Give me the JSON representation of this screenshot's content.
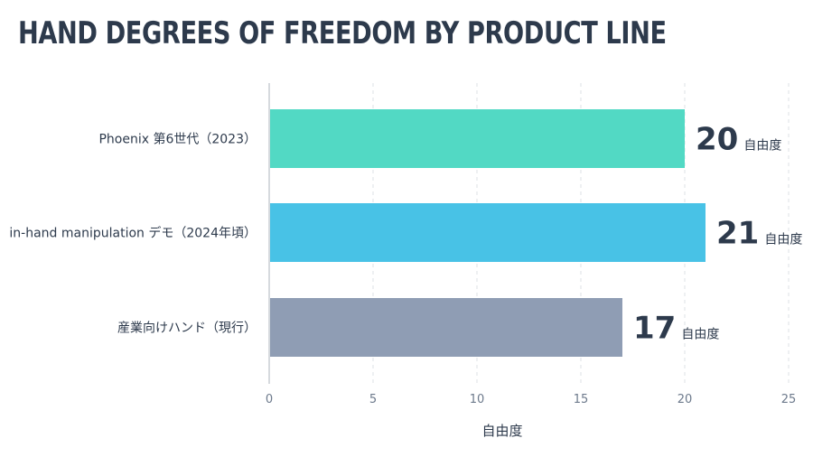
{
  "title": "HAND DEGREES OF FREEDOM BY PRODUCT LINE",
  "colors": {
    "title": "#2d3a4c",
    "text": "#2d3a4c",
    "axis": "#c8cdd3",
    "grid": "#dde1e6",
    "tick": "#6d7a8c"
  },
  "chart_data": {
    "type": "bar",
    "orientation": "horizontal",
    "title": "HAND DEGREES OF FREEDOM BY PRODUCT LINE",
    "xlabel": "自由度",
    "ylabel": "",
    "xlim": [
      0,
      25
    ],
    "xticks": [
      0,
      5,
      10,
      15,
      20,
      25
    ],
    "grid": "vertical dashed",
    "unit_suffix": "自由度",
    "categories": [
      "Phoenix 第6世代（2023）",
      "in-hand manipulation デモ（2024年頃）",
      "産業向けハンド（現行）"
    ],
    "values": [
      20,
      21,
      17
    ],
    "bar_colors": [
      "#52d9c4",
      "#48c2e6",
      "#8f9db4"
    ]
  }
}
